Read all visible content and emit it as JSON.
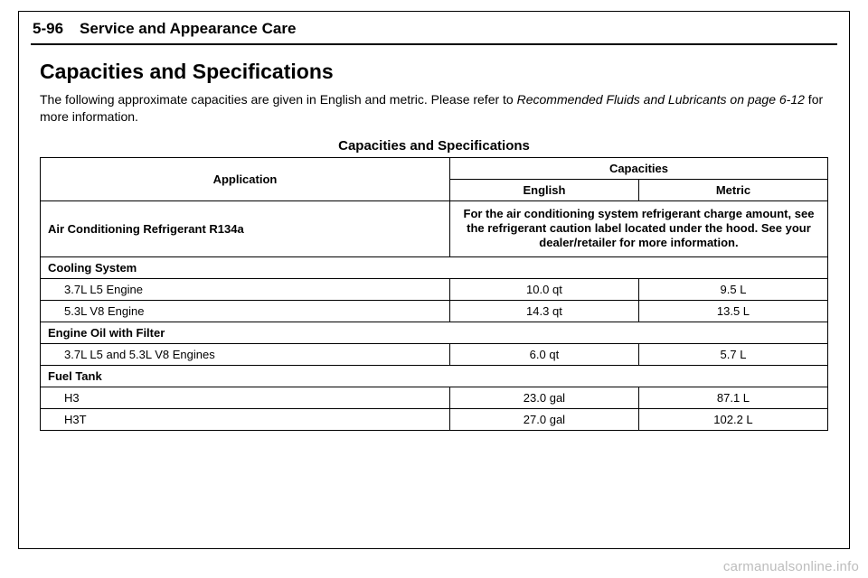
{
  "header": {
    "page_number": "5-96",
    "section_title": "Service and Appearance Care"
  },
  "title": "Capacities and Specifications",
  "intro": {
    "text_before_ref": "The following approximate capacities are given in English and metric. Please refer to ",
    "ref_italic": "Recommended Fluids and Lubricants on page 6-12",
    "text_after_ref": " for more information."
  },
  "table": {
    "caption": "Capacities and Specifications",
    "head": {
      "application": "Application",
      "capacities": "Capacities",
      "english": "English",
      "metric": "Metric"
    },
    "ac": {
      "label": "Air Conditioning Refrigerant R134a",
      "note": "For the air conditioning system refrigerant charge amount, see the refrigerant caution label located under the hood. See your dealer/retailer for more information."
    },
    "cooling": {
      "heading": "Cooling System",
      "rows": [
        {
          "label": "3.7L L5 Engine",
          "english": "10.0 qt",
          "metric": "9.5 L"
        },
        {
          "label": "5.3L V8 Engine",
          "english": "14.3 qt",
          "metric": "13.5 L"
        }
      ]
    },
    "oil": {
      "heading": "Engine Oil with Filter",
      "rows": [
        {
          "label": "3.7L L5 and 5.3L V8 Engines",
          "english": "6.0 qt",
          "metric": "5.7 L"
        }
      ]
    },
    "fuel": {
      "heading": "Fuel Tank",
      "rows": [
        {
          "label": "H3",
          "english": "23.0 gal",
          "metric": "87.1 L"
        },
        {
          "label": "H3T",
          "english": "27.0 gal",
          "metric": "102.2 L"
        }
      ]
    }
  },
  "watermark": "carmanualsonline.info"
}
